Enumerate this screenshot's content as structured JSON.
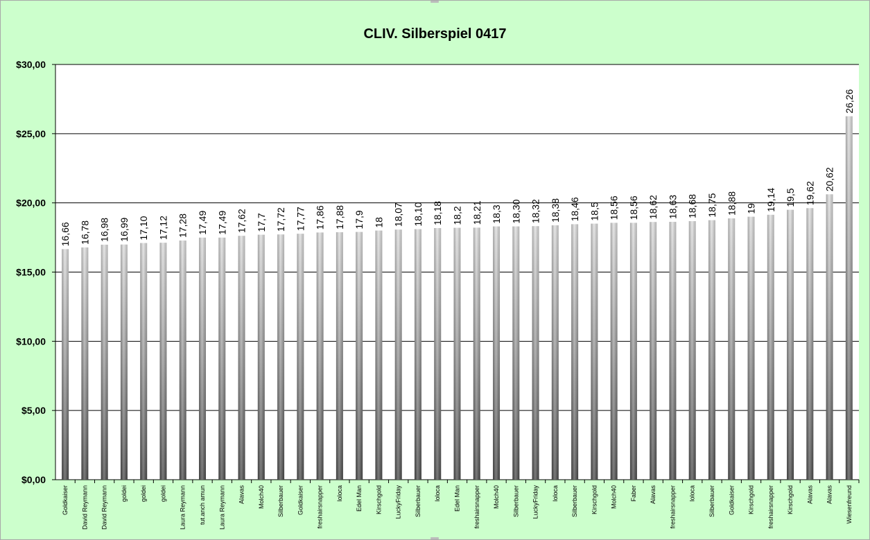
{
  "chart_data": {
    "type": "bar",
    "title": "CLIV. Silberspiel 0417",
    "xlabel": "",
    "ylabel": "",
    "ylim": [
      0,
      30
    ],
    "yticks": [
      "$0,00",
      "$5,00",
      "$10,00",
      "$15,00",
      "$20,00",
      "$25,00",
      "$30,00"
    ],
    "grid": true,
    "colors": {
      "background": "#ccffcc",
      "plot_area": "#ffffff",
      "bar_light": "#e0e0e0",
      "bar_dark": "#4d4d4d"
    },
    "categories": [
      "Goldkaiser",
      "David Reymann",
      "David Reymann",
      "goldei",
      "goldei",
      "goldei",
      "Laura Reymann",
      "tut.anch amun",
      "Laura Reymann",
      "Alavas",
      "Molch40",
      "Silberbauer",
      "Goldkaiser",
      "freshairsnapper",
      "loloca",
      "Edel Man",
      "Kirschgold",
      "LuckyFriday",
      "Silberbauer",
      "loloca",
      "Edel Man",
      "freshairsnapper",
      "Molch40",
      "Silberbauer",
      "LuckyFriday",
      "loloca",
      "Silberbauer",
      "Kirschgold",
      "Molch40",
      "Faber",
      "Alavas",
      "freshairsnapper",
      "loloca",
      "Silberbauer",
      "Goldkaiser",
      "Kirschgold",
      "freshairsnapper",
      "Kirschgold",
      "Alavas",
      "Alavas",
      "Wiesenfreund"
    ],
    "values": [
      16.66,
      16.78,
      16.98,
      16.99,
      17.1,
      17.12,
      17.28,
      17.49,
      17.49,
      17.62,
      17.7,
      17.72,
      17.77,
      17.86,
      17.88,
      17.9,
      18,
      18.07,
      18.1,
      18.18,
      18.2,
      18.21,
      18.3,
      18.3,
      18.32,
      18.38,
      18.46,
      18.5,
      18.56,
      18.56,
      18.62,
      18.63,
      18.68,
      18.75,
      18.88,
      19,
      19.14,
      19.5,
      19.62,
      20.62,
      26.26
    ],
    "data_labels": [
      "16,66",
      "16,78",
      "16,98",
      "16,99",
      "17,10",
      "17,12",
      "17,28",
      "17,49",
      "17,49",
      "17,62",
      "17,7",
      "17,72",
      "17,77",
      "17,86",
      "17,88",
      "17,9",
      "18",
      "18,07",
      "18,10",
      "18,18",
      "18,2",
      "18,21",
      "18,3",
      "18,30",
      "18,32",
      "18,38",
      "18,46",
      "18,5",
      "18,56",
      "18,56",
      "18,62",
      "18,63",
      "18,68",
      "18,75",
      "18,88",
      "19",
      "19,14",
      "19,5",
      "19,62",
      "20,62",
      "26,26"
    ]
  }
}
